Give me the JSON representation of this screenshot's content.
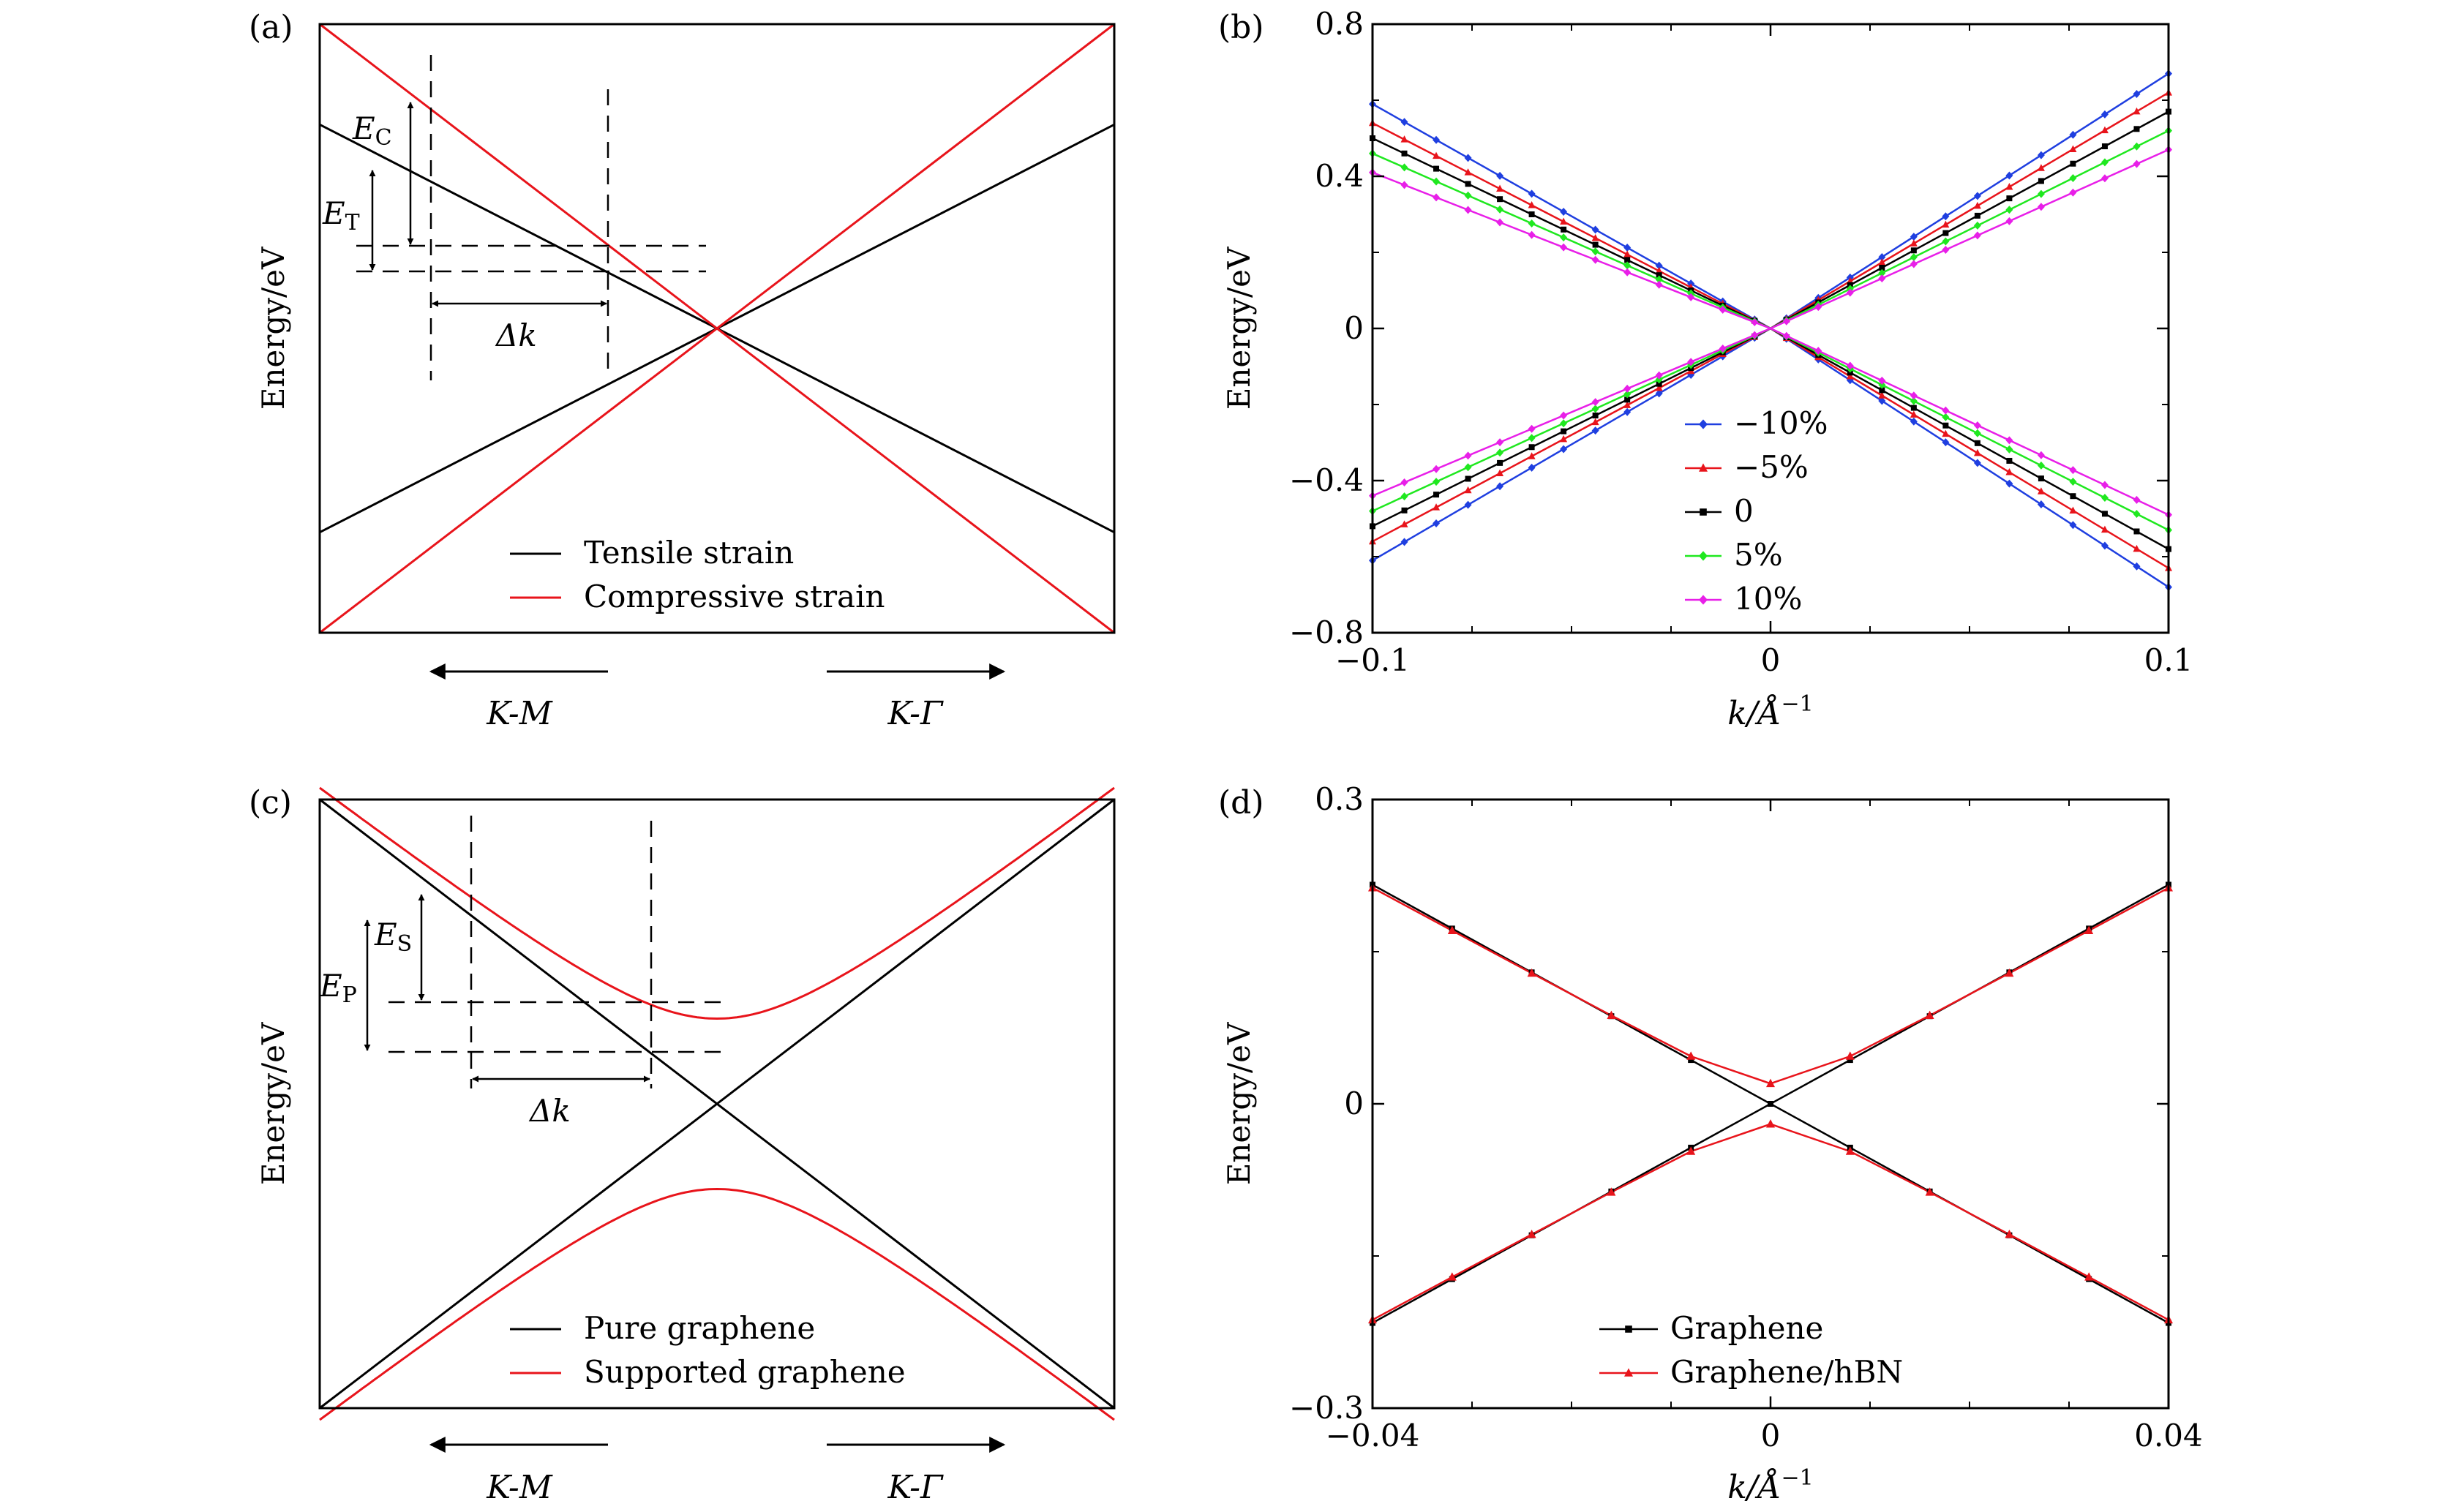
{
  "colors": {
    "black": "#000000",
    "red": "#e8141b",
    "blue": "#1f3fe0",
    "green": "#1fe81f",
    "magenta": "#e81fe8"
  },
  "chart_data": [
    {
      "panel": "(a)",
      "type": "line",
      "ylabel": "Energy/eV",
      "xlim": [
        -1,
        1
      ],
      "ylim": [
        -1,
        1
      ],
      "series": [
        {
          "name": "Tensile strain",
          "color": "#000000",
          "lines": [
            [
              [
                -1,
                0.67
              ],
              [
                1,
                -0.67
              ]
            ],
            [
              [
                -1,
                -0.67
              ],
              [
                1,
                0.67
              ]
            ]
          ]
        },
        {
          "name": "Compressive strain",
          "color": "#e8141b",
          "lines": [
            [
              [
                -1,
                1
              ],
              [
                1,
                -1
              ]
            ],
            [
              [
                -1,
                -1
              ],
              [
                1,
                1
              ]
            ]
          ]
        }
      ],
      "legend": [
        "Tensile strain",
        "Compressive strain"
      ],
      "direction_labels": [
        "K-M",
        "K-Γ"
      ],
      "annotations": {
        "e_compressive_main": "E",
        "e_compressive_sub": "C",
        "e_tensile_main": "E",
        "e_tensile_sub": "T",
        "delta_k": "Δk"
      }
    },
    {
      "panel": "(b)",
      "type": "line",
      "ylabel": "Energy/eV",
      "xlabel_main": "k/Å",
      "xlabel_sup": "−1",
      "xlim": [
        -0.1,
        0.1
      ],
      "ylim": [
        -0.8,
        0.8
      ],
      "xticks": [
        -0.1,
        0,
        0.1
      ],
      "xtick_labels": [
        "−0.1",
        "0",
        "0.1"
      ],
      "yticks": [
        -0.8,
        -0.4,
        0,
        0.4,
        0.8
      ],
      "ytick_labels": [
        "−0.8",
        "−0.4",
        "0",
        "0.4",
        "0.8"
      ],
      "series": [
        {
          "name": "−10%",
          "color": "#1f3fe0",
          "marker": "diamond",
          "left_up": 0.59,
          "right_up": 0.67,
          "left_dn": -0.61,
          "right_dn": -0.68
        },
        {
          "name": "−5%",
          "color": "#e8141b",
          "marker": "triangle",
          "left_up": 0.54,
          "right_up": 0.62,
          "left_dn": -0.56,
          "right_dn": -0.63
        },
        {
          "name": "0",
          "color": "#000000",
          "marker": "square",
          "left_up": 0.5,
          "right_up": 0.57,
          "left_dn": -0.52,
          "right_dn": -0.58
        },
        {
          "name": "5%",
          "color": "#1fe81f",
          "marker": "diamond",
          "left_up": 0.46,
          "right_up": 0.52,
          "left_dn": -0.48,
          "right_dn": -0.53
        },
        {
          "name": "10%",
          "color": "#e81fe8",
          "marker": "diamond",
          "left_up": 0.41,
          "right_up": 0.47,
          "left_dn": -0.44,
          "right_dn": -0.49
        }
      ],
      "legend": [
        "−10%",
        "−5%",
        "0",
        "5%",
        "10%"
      ]
    },
    {
      "panel": "(c)",
      "type": "line",
      "ylabel": "Energy/eV",
      "xlim": [
        -1,
        1
      ],
      "ylim": [
        -1,
        1
      ],
      "series": [
        {
          "name": "Pure graphene",
          "color": "#000000",
          "lines": [
            [
              [
                -1,
                1
              ],
              [
                1,
                -1
              ]
            ],
            [
              [
                -1,
                -1
              ],
              [
                1,
                1
              ]
            ]
          ]
        },
        {
          "name": "Supported graphene",
          "color": "#e8141b",
          "gap": 0.28
        }
      ],
      "legend": [
        "Pure graphene",
        "Supported graphene"
      ],
      "direction_labels": [
        "K-M",
        "K-Γ"
      ],
      "annotations": {
        "e_supported_main": "E",
        "e_supported_sub": "S",
        "e_pure_main": "E",
        "e_pure_sub": "P",
        "delta_k": "Δk"
      }
    },
    {
      "panel": "(d)",
      "type": "line",
      "ylabel": "Energy/eV",
      "xlabel_main": "k/Å",
      "xlabel_sup": "−1",
      "xlim": [
        -0.04,
        0.04
      ],
      "ylim": [
        -0.3,
        0.3
      ],
      "xticks": [
        -0.04,
        0,
        0.04
      ],
      "xtick_labels": [
        "−0.04",
        "0",
        "0.04"
      ],
      "yticks": [
        -0.3,
        0,
        0.3
      ],
      "ytick_labels": [
        "−0.3",
        "0",
        "0.3"
      ],
      "series": [
        {
          "name": "Graphene",
          "color": "#000000",
          "marker": "square",
          "slope": 5.4
        },
        {
          "name": "Graphene/hBN",
          "color": "#e8141b",
          "marker": "triangle",
          "slope": 5.3,
          "gap": 0.02
        }
      ],
      "legend": [
        "Graphene",
        "Graphene/hBN"
      ]
    }
  ]
}
